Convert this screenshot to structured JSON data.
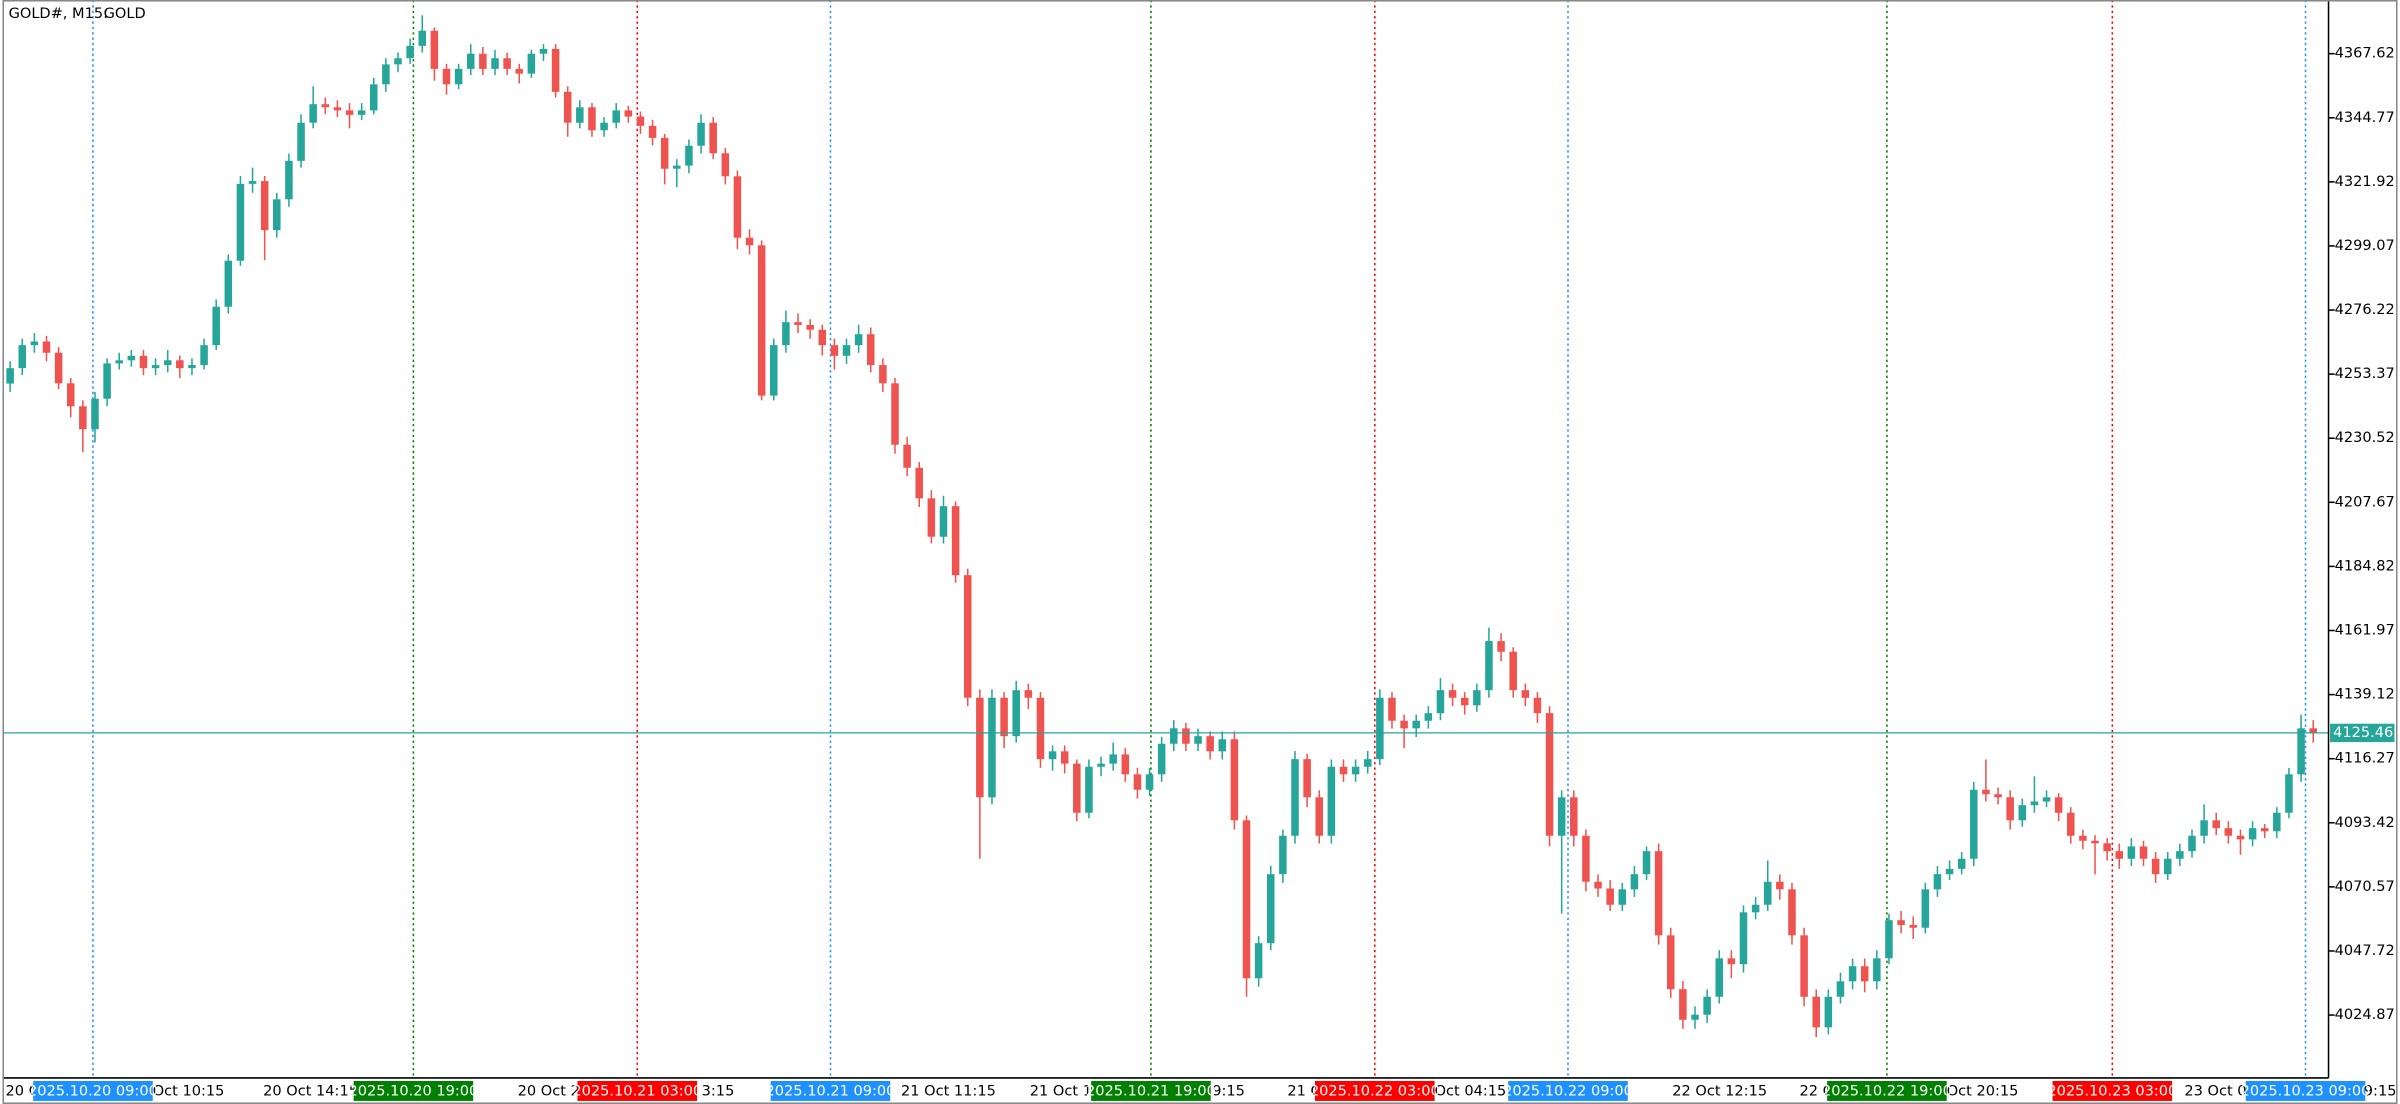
{
  "chart_data": {
    "type": "candlestick",
    "symbol": "GOLD#, M15:",
    "description": "GOLD",
    "up_color": "#26a69a",
    "down_color": "#ef5350",
    "ylim": [
      4002.46,
      4386.75
    ],
    "yticks": [
      4367.62,
      4344.77,
      4321.92,
      4299.07,
      4276.22,
      4253.37,
      4230.52,
      4207.67,
      4184.82,
      4161.97,
      4139.12,
      4116.27,
      4093.42,
      4070.57,
      4047.72,
      4024.87
    ],
    "last_price": 4125.46,
    "last_price_color": "#26a69a",
    "x_labels": [
      "20 O",
      "Oct 10:15",
      "20 Oct 14:15",
      "20 Oct 22",
      "3:15",
      "21 Oct 11:15",
      "21 Oct 15",
      "9:15",
      "21 C",
      "Oct 04:15",
      "22 Oct 12:15",
      "22 O",
      "Oct 20:15",
      "23 Oct 05",
      "9:15"
    ],
    "separators": [
      {
        "label": "2025.10.20 09:00",
        "color": "#1e90ff"
      },
      {
        "label": "2025.10.20 19:00",
        "color": "#008000"
      },
      {
        "label": "2025.10.21 03:00",
        "color": "#ff0000"
      },
      {
        "label": "2025.10.21 09:00",
        "color": "#1e90ff"
      },
      {
        "label": "2025.10.21 19:00",
        "color": "#008000"
      },
      {
        "label": "2025.10.22 03:00",
        "color": "#ff0000"
      },
      {
        "label": "2025.10.22 09:00",
        "color": "#1e90ff"
      },
      {
        "label": "2025.10.22 19:00",
        "color": "#008000"
      },
      {
        "label": "2025.10.23 03:00",
        "color": "#ff0000"
      },
      {
        "label": "2025.10.23 09:00",
        "color": "#1e90ff"
      }
    ],
    "ohlc": [
      [
        4250,
        4258,
        4247,
        4255.5
      ],
      [
        4255.5,
        4266,
        4253,
        4263.7
      ],
      [
        4263.7,
        4268,
        4261,
        4265
      ],
      [
        4265,
        4267,
        4258,
        4261
      ],
      [
        4261,
        4263,
        4248,
        4250.1
      ],
      [
        4250.1,
        4252,
        4238,
        4241.9
      ],
      [
        4241.9,
        4244,
        4225.5,
        4233.7
      ],
      [
        4233.7,
        4247,
        4229,
        4244.6
      ],
      [
        4244.6,
        4259,
        4242,
        4257.2
      ],
      [
        4257.2,
        4261,
        4255,
        4258.3
      ],
      [
        4258.3,
        4262,
        4256,
        4259.9
      ],
      [
        4259.9,
        4262,
        4253,
        4255.5
      ],
      [
        4255.5,
        4259,
        4253,
        4256.6
      ],
      [
        4256.6,
        4262,
        4254,
        4258.3
      ],
      [
        4258.3,
        4260,
        4252,
        4255.5
      ],
      [
        4255.5,
        4259,
        4253,
        4256.6
      ],
      [
        4256.6,
        4266,
        4255,
        4263.7
      ],
      [
        4263.7,
        4280,
        4262,
        4277.4
      ],
      [
        4277.4,
        4296,
        4275,
        4293.8
      ],
      [
        4293.8,
        4324,
        4292,
        4321.2
      ],
      [
        4321.2,
        4327,
        4318,
        4322.2
      ],
      [
        4322.2,
        4324,
        4294,
        4304.7
      ],
      [
        4304.7,
        4318,
        4302,
        4315.7
      ],
      [
        4315.7,
        4332,
        4313,
        4329.4
      ],
      [
        4329.4,
        4346,
        4327,
        4343
      ],
      [
        4343,
        4356,
        4341,
        4349.6
      ],
      [
        4349.6,
        4352,
        4346,
        4348.5
      ],
      [
        4348.5,
        4351,
        4345,
        4347.4
      ],
      [
        4347.4,
        4350,
        4341,
        4345.8
      ],
      [
        4345.8,
        4350,
        4344,
        4347.4
      ],
      [
        4347.4,
        4359,
        4346,
        4356.7
      ],
      [
        4356.7,
        4366,
        4354,
        4363.8
      ],
      [
        4363.8,
        4368,
        4361,
        4366
      ],
      [
        4366,
        4373,
        4364,
        4370.4
      ],
      [
        4370.4,
        4381.3,
        4368,
        4375.8
      ],
      [
        4375.8,
        4377,
        4358,
        4362.2
      ],
      [
        4362.2,
        4364,
        4353,
        4356.7
      ],
      [
        4356.7,
        4364,
        4355,
        4362.2
      ],
      [
        4362.2,
        4371,
        4360,
        4367.6
      ],
      [
        4367.6,
        4370,
        4360,
        4362.2
      ],
      [
        4362.2,
        4369,
        4360,
        4366
      ],
      [
        4366,
        4368,
        4360,
        4362.2
      ],
      [
        4362.2,
        4364,
        4357,
        4360.5
      ],
      [
        4360.5,
        4369,
        4359,
        4367.6
      ],
      [
        4367.6,
        4371,
        4365,
        4369.3
      ],
      [
        4369.3,
        4371,
        4352,
        4354
      ],
      [
        4354,
        4356,
        4338,
        4343
      ],
      [
        4343,
        4351,
        4341,
        4348.5
      ],
      [
        4348.5,
        4350,
        4338,
        4340.3
      ],
      [
        4340.3,
        4345,
        4338,
        4343
      ],
      [
        4343,
        4350,
        4341,
        4347.4
      ],
      [
        4347.4,
        4349,
        4343,
        4345.2
      ],
      [
        4345.2,
        4347,
        4339,
        4341.9
      ],
      [
        4341.9,
        4344,
        4335,
        4337.6
      ],
      [
        4337.6,
        4339,
        4321,
        4326.6
      ],
      [
        4326.6,
        4330,
        4320,
        4327.7
      ],
      [
        4327.7,
        4337,
        4325,
        4334.8
      ],
      [
        4334.8,
        4346,
        4332,
        4343
      ],
      [
        4343,
        4345,
        4330,
        4332.1
      ],
      [
        4332.1,
        4334,
        4321,
        4323.9
      ],
      [
        4323.9,
        4326,
        4298,
        4302
      ],
      [
        4302,
        4305,
        4296,
        4299.3
      ],
      [
        4299.3,
        4301,
        4244,
        4245.7
      ],
      [
        4245.7,
        4266,
        4244,
        4263.7
      ],
      [
        4263.7,
        4276,
        4261,
        4271.9
      ],
      [
        4271.9,
        4275,
        4268,
        4270.9
      ],
      [
        4270.9,
        4273,
        4266,
        4269.2
      ],
      [
        4269.2,
        4271,
        4260,
        4263.7
      ],
      [
        4263.7,
        4266,
        4255,
        4259.9
      ],
      [
        4259.9,
        4266,
        4257,
        4263.7
      ],
      [
        4263.7,
        4271,
        4261,
        4267.6
      ],
      [
        4267.6,
        4270,
        4254,
        4256.6
      ],
      [
        4256.6,
        4259,
        4247,
        4250.1
      ],
      [
        4250.1,
        4252,
        4225,
        4228.2
      ],
      [
        4228.2,
        4231,
        4217,
        4220
      ],
      [
        4220,
        4222,
        4206,
        4209.1
      ],
      [
        4209.1,
        4212,
        4193,
        4195.4
      ],
      [
        4195.4,
        4210,
        4193,
        4206.3
      ],
      [
        4206.3,
        4208,
        4179,
        4181.7
      ],
      [
        4181.7,
        4184,
        4135,
        4138
      ],
      [
        4138,
        4141,
        4080.6,
        4102.5
      ],
      [
        4102.5,
        4141,
        4100,
        4138
      ],
      [
        4138,
        4140,
        4120,
        4124.3
      ],
      [
        4124.3,
        4144,
        4122,
        4140.7
      ],
      [
        4140.7,
        4143,
        4134,
        4138
      ],
      [
        4138,
        4140,
        4113,
        4116.1
      ],
      [
        4116.1,
        4121,
        4112,
        4118.9
      ],
      [
        4118.9,
        4121,
        4111,
        4114.5
      ],
      [
        4114.5,
        4116,
        4094,
        4097
      ],
      [
        4097,
        4116,
        4095,
        4113.4
      ],
      [
        4113.4,
        4117,
        4110,
        4114.5
      ],
      [
        4114.5,
        4122,
        4112,
        4117.8
      ],
      [
        4117.8,
        4120,
        4108,
        4110.7
      ],
      [
        4110.7,
        4113,
        4102,
        4105.2
      ],
      [
        4105.2,
        4113,
        4103,
        4110.7
      ],
      [
        4110.7,
        4124,
        4108,
        4121.6
      ],
      [
        4121.6,
        4130,
        4119,
        4127.1
      ],
      [
        4127.1,
        4129,
        4119,
        4121.6
      ],
      [
        4121.6,
        4127,
        4119,
        4124.3
      ],
      [
        4124.3,
        4126,
        4116,
        4118.9
      ],
      [
        4118.9,
        4126,
        4116,
        4123.2
      ],
      [
        4123.2,
        4126,
        4091,
        4094.3
      ],
      [
        4094.3,
        4096,
        4031.4,
        4038
      ],
      [
        4038,
        4053,
        4035,
        4050.5
      ],
      [
        4050.5,
        4078,
        4048,
        4075.1
      ],
      [
        4075.1,
        4091,
        4072,
        4088.8
      ],
      [
        4088.8,
        4119,
        4086,
        4116.1
      ],
      [
        4116.1,
        4118,
        4099,
        4102.5
      ],
      [
        4102.5,
        4105,
        4086,
        4088.8
      ],
      [
        4088.8,
        4116,
        4086,
        4113.4
      ],
      [
        4113.4,
        4116,
        4108,
        4110.7
      ],
      [
        4110.7,
        4116,
        4108,
        4113.4
      ],
      [
        4113.4,
        4119,
        4111,
        4116.1
      ],
      [
        4116.1,
        4141,
        4114,
        4138
      ],
      [
        4138,
        4140,
        4127,
        4129.8
      ],
      [
        4129.8,
        4132,
        4120,
        4127.1
      ],
      [
        4127.1,
        4132,
        4124,
        4129.8
      ],
      [
        4129.8,
        4135,
        4127,
        4132.5
      ],
      [
        4132.5,
        4145,
        4130,
        4140.7
      ],
      [
        4140.7,
        4143,
        4135,
        4138
      ],
      [
        4138,
        4140,
        4132,
        4135.3
      ],
      [
        4135.3,
        4143,
        4133,
        4140.7
      ],
      [
        4140.7,
        4163,
        4138,
        4158.2
      ],
      [
        4158.2,
        4161,
        4151,
        4154.4
      ],
      [
        4154.4,
        4156,
        4138,
        4140.7
      ],
      [
        4140.7,
        4143,
        4135,
        4138
      ],
      [
        4138,
        4140,
        4129,
        4132.5
      ],
      [
        4132.5,
        4135,
        4085,
        4088.8
      ],
      [
        4088.8,
        4105,
        4061,
        4102.5
      ],
      [
        4102.5,
        4105,
        4085,
        4088.8
      ],
      [
        4088.8,
        4091,
        4069,
        4072.4
      ],
      [
        4072.4,
        4075,
        4067,
        4070
      ],
      [
        4070,
        4073,
        4062,
        4064.2
      ],
      [
        4064.2,
        4072,
        4062,
        4069.7
      ],
      [
        4069.7,
        4078,
        4067,
        4075.1
      ],
      [
        4075.1,
        4085,
        4073,
        4083.3
      ],
      [
        4083.3,
        4086,
        4050,
        4053.3
      ],
      [
        4053.3,
        4056,
        4031,
        4034.1
      ],
      [
        4034.1,
        4037,
        4020,
        4023.2
      ],
      [
        4023.2,
        4028,
        4020,
        4025
      ],
      [
        4025,
        4034,
        4022,
        4031.4
      ],
      [
        4031.4,
        4048,
        4029,
        4045.1
      ],
      [
        4045.1,
        4048,
        4038,
        4043
      ],
      [
        4043,
        4064,
        4040,
        4061.5
      ],
      [
        4061.5,
        4067,
        4059,
        4064.2
      ],
      [
        4064.2,
        4080,
        4062,
        4072.4
      ],
      [
        4072.4,
        4075,
        4066,
        4069.7
      ],
      [
        4069.7,
        4072,
        4050,
        4053.3
      ],
      [
        4053.3,
        4056,
        4028,
        4031.4
      ],
      [
        4031.4,
        4034,
        4017,
        4020.5
      ],
      [
        4020.5,
        4034,
        4018,
        4031.4
      ],
      [
        4031.4,
        4040,
        4029,
        4036.9
      ],
      [
        4036.9,
        4045,
        4034,
        4042.3
      ],
      [
        4042.3,
        4045,
        4033,
        4036.9
      ],
      [
        4036.9,
        4048,
        4034,
        4045.1
      ],
      [
        4045.1,
        4061,
        4043,
        4058.7
      ],
      [
        4058.7,
        4062,
        4054,
        4057
      ],
      [
        4057,
        4060,
        4052,
        4056
      ],
      [
        4056,
        4072,
        4054,
        4069.7
      ],
      [
        4069.7,
        4078,
        4067,
        4075.1
      ],
      [
        4075.1,
        4080,
        4073,
        4077
      ],
      [
        4077,
        4083,
        4075,
        4080.6
      ],
      [
        4080.6,
        4108,
        4078,
        4105.2
      ],
      [
        4105.2,
        4116,
        4101,
        4103.6
      ],
      [
        4103.6,
        4106,
        4100,
        4102.5
      ],
      [
        4102.5,
        4105,
        4091,
        4094.3
      ],
      [
        4094.3,
        4102,
        4092,
        4099.7
      ],
      [
        4099.7,
        4110,
        4097,
        4101
      ],
      [
        4101,
        4105,
        4099,
        4102.5
      ],
      [
        4102.5,
        4104,
        4094,
        4097
      ],
      [
        4097,
        4099,
        4086,
        4088.8
      ],
      [
        4088.8,
        4091,
        4084,
        4087
      ],
      [
        4087,
        4089,
        4075,
        4086.1
      ],
      [
        4086.1,
        4088,
        4080,
        4083.3
      ],
      [
        4083.3,
        4086,
        4077,
        4080.6
      ],
      [
        4080.6,
        4088,
        4078,
        4085
      ],
      [
        4085,
        4087,
        4078,
        4080.6
      ],
      [
        4080.6,
        4083,
        4072,
        4075.1
      ],
      [
        4075.1,
        4083,
        4073,
        4080.6
      ],
      [
        4080.6,
        4086,
        4078,
        4083.3
      ],
      [
        4083.3,
        4091,
        4081,
        4088.8
      ],
      [
        4088.8,
        4100,
        4086,
        4094.3
      ],
      [
        4094.3,
        4097,
        4089,
        4091.5
      ],
      [
        4091.5,
        4094,
        4086,
        4088.8
      ],
      [
        4088.8,
        4091,
        4082,
        4087.5
      ],
      [
        4087.5,
        4094,
        4085,
        4091.5
      ],
      [
        4091.5,
        4093,
        4088,
        4090.4
      ],
      [
        4090.4,
        4099,
        4088,
        4097
      ],
      [
        4097,
        4113,
        4095,
        4110.7
      ],
      [
        4110.7,
        4132,
        4108,
        4127.1
      ],
      [
        4127.1,
        4130,
        4122,
        4125.4
      ]
    ]
  }
}
